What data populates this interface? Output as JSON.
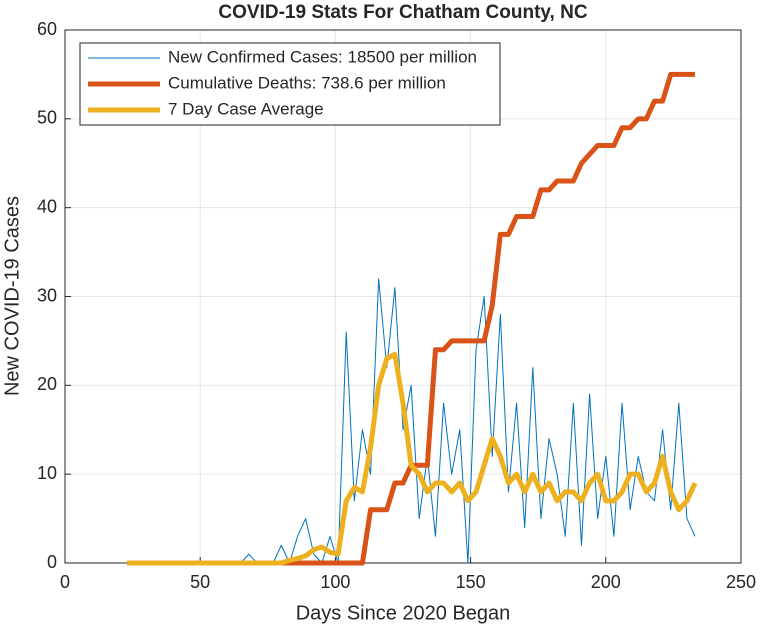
{
  "chart_data": {
    "type": "line",
    "title": "COVID-19 Stats For Chatham County, NC",
    "x_label": "Days Since 2020 Began",
    "y_label": "New COVID-19 Cases",
    "x": [
      23,
      26,
      29,
      32,
      35,
      38,
      41,
      44,
      47,
      50,
      53,
      56,
      59,
      62,
      65,
      68,
      71,
      74,
      77,
      80,
      83,
      86,
      89,
      92,
      95,
      98,
      101,
      104,
      107,
      110,
      113,
      116,
      119,
      122,
      125,
      128,
      131,
      134,
      137,
      140,
      143,
      146,
      149,
      152,
      155,
      158,
      161,
      164,
      167,
      170,
      173,
      176,
      179,
      182,
      185,
      188,
      191,
      194,
      197,
      200,
      203,
      206,
      209,
      212,
      215,
      218,
      221,
      224,
      227,
      230,
      233
    ],
    "series": [
      {
        "name": "New Confirmed Cases: 18500 per million",
        "color": "#0072bd",
        "width": 1,
        "values": [
          0,
          0,
          0,
          0,
          0,
          0,
          0,
          0,
          0,
          0,
          0,
          0,
          0,
          0,
          0,
          1,
          0,
          0,
          0,
          2,
          0,
          3,
          5,
          1,
          0,
          3,
          0,
          26,
          7,
          15,
          10,
          32,
          22,
          31,
          15,
          20,
          5,
          12,
          3,
          18,
          10,
          15,
          0,
          24,
          30,
          12,
          28,
          8,
          18,
          4,
          22,
          5,
          14,
          10,
          3,
          18,
          2,
          19,
          5,
          12,
          3,
          18,
          6,
          12,
          8,
          7,
          15,
          6,
          18,
          5,
          3
        ]
      },
      {
        "name": "Cumulative Deaths: 738.6 per million",
        "color": "#d95319",
        "width": 5,
        "values": [
          0,
          0,
          0,
          0,
          0,
          0,
          0,
          0,
          0,
          0,
          0,
          0,
          0,
          0,
          0,
          0,
          0,
          0,
          0,
          0,
          0,
          0,
          0,
          0,
          0,
          0,
          0,
          0,
          0,
          0,
          6,
          6,
          6,
          9,
          9,
          11,
          11,
          11,
          24,
          24,
          25,
          25,
          25,
          25,
          25,
          29,
          37,
          37,
          39,
          39,
          39,
          42,
          42,
          43,
          43,
          43,
          45,
          46,
          47,
          47,
          47,
          49,
          49,
          50,
          50,
          52,
          52,
          55,
          55,
          55,
          55
        ]
      },
      {
        "name": "7 Day Case Average",
        "color": "#edb120",
        "width": 5,
        "values": [
          0,
          0,
          0,
          0,
          0,
          0,
          0,
          0,
          0,
          0,
          0,
          0,
          0,
          0,
          0,
          0,
          0,
          0,
          0,
          0,
          0.3,
          0.5,
          0.8,
          1.5,
          1.8,
          1.2,
          1,
          7,
          8.5,
          8,
          13,
          20,
          23,
          23.5,
          18,
          11,
          10,
          8,
          9,
          9,
          8,
          9,
          7,
          8,
          11,
          14,
          12,
          9,
          10,
          8,
          10,
          8,
          9,
          7,
          8,
          8,
          7,
          9,
          10,
          7,
          7,
          8,
          10,
          10,
          8,
          9,
          12,
          8,
          6,
          7,
          9
        ]
      }
    ],
    "xlim": [
      0,
      250
    ],
    "xticks": [
      0,
      50,
      100,
      150,
      200,
      250
    ],
    "ylim": [
      0,
      60
    ],
    "yticks": [
      0,
      10,
      20,
      30,
      40,
      50,
      60
    ],
    "grid": true,
    "legend": "upper left"
  }
}
